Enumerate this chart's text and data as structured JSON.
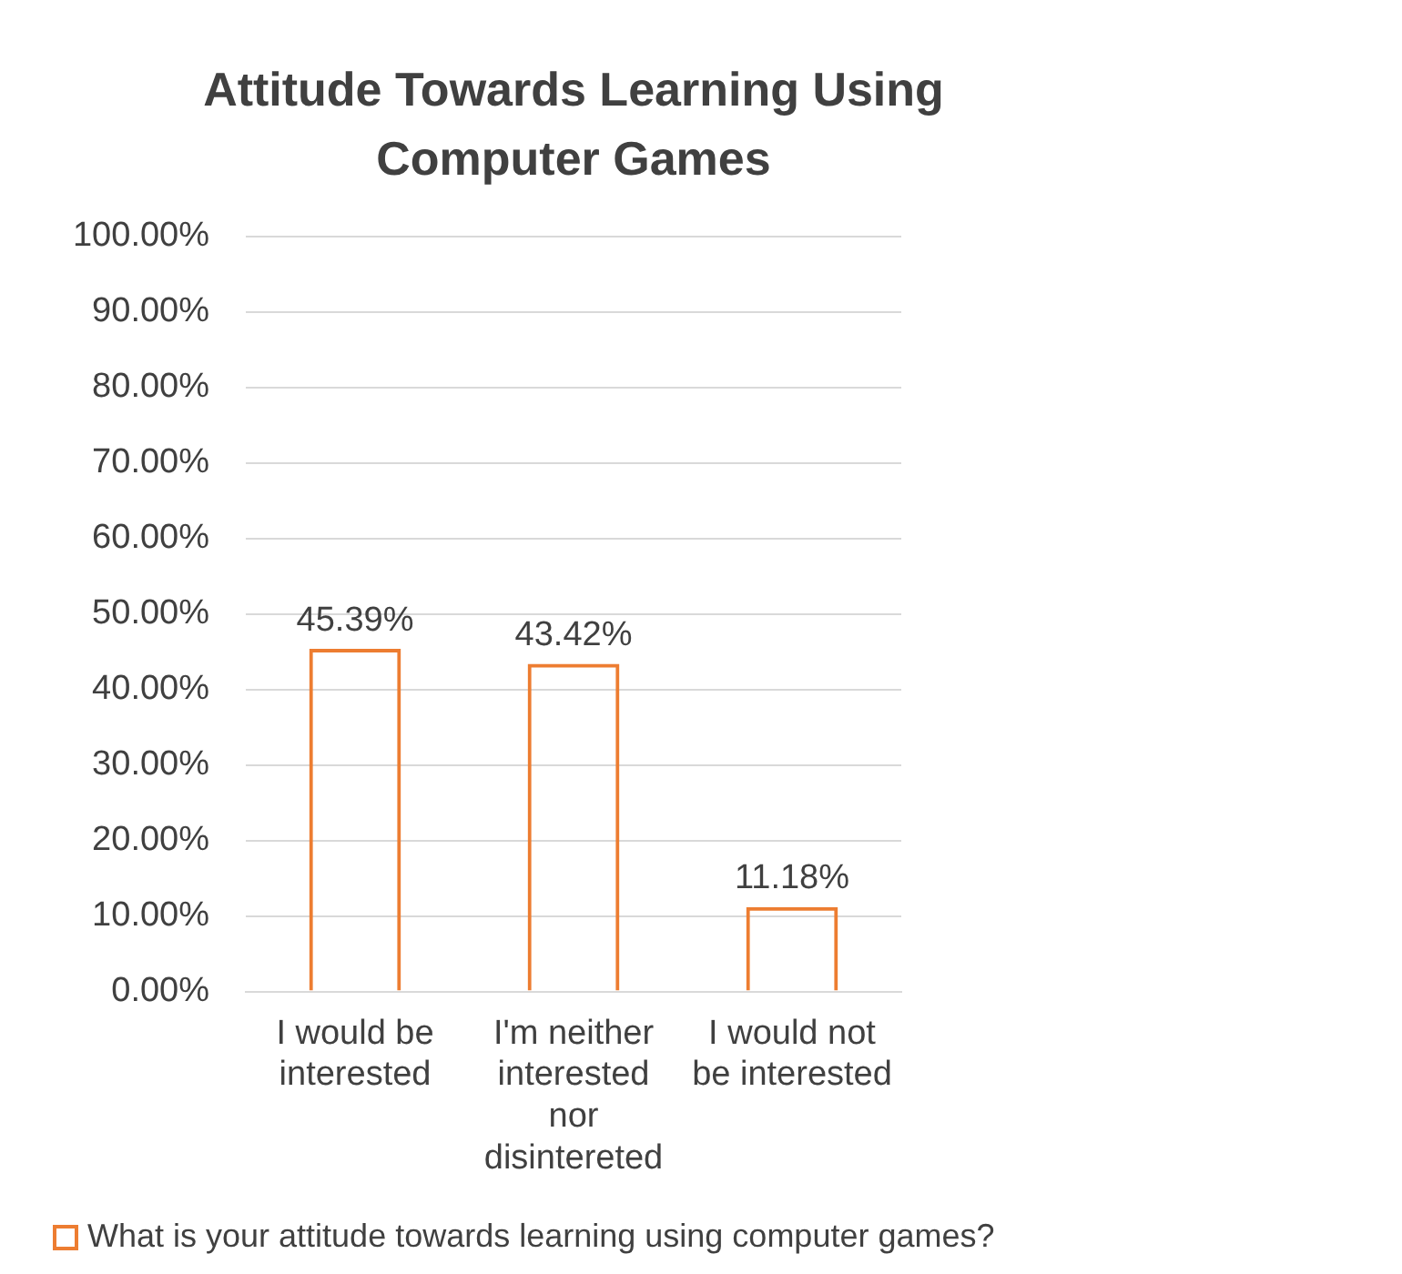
{
  "chart_data": {
    "type": "bar",
    "title": "Attitude Towards Learning Using Computer Games",
    "categories": [
      "I would be interested",
      "I'm neither interested nor disintereted",
      "I would not be interested"
    ],
    "series": [
      {
        "name": "What is your attitude towards learning using computer games?",
        "color": "#ed7d31",
        "values": [
          45.39,
          43.42,
          11.18
        ],
        "value_labels": [
          "45.39%",
          "43.42%",
          "11.18%"
        ]
      }
    ],
    "ylim": [
      0,
      100
    ],
    "yticks": [
      {
        "value": 0,
        "label": "0.00%"
      },
      {
        "value": 10,
        "label": "10.00%"
      },
      {
        "value": 20,
        "label": "20.00%"
      },
      {
        "value": 30,
        "label": "30.00%"
      },
      {
        "value": 40,
        "label": "40.00%"
      },
      {
        "value": 50,
        "label": "50.00%"
      },
      {
        "value": 60,
        "label": "60.00%"
      },
      {
        "value": 70,
        "label": "70.00%"
      },
      {
        "value": 80,
        "label": "80.00%"
      },
      {
        "value": 90,
        "label": "90.00%"
      },
      {
        "value": 100,
        "label": "100.00%"
      }
    ],
    "grid": "y",
    "legend": "bottom"
  }
}
